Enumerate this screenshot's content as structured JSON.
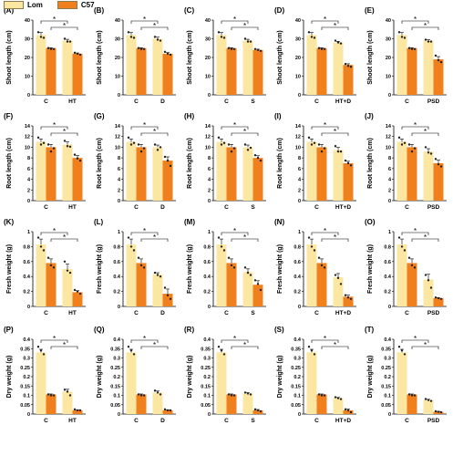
{
  "colors": {
    "lom": "#FBE7A1",
    "c57": "#F07F1E"
  },
  "legend": [
    {
      "label": "Lom",
      "color": "#FBE7A1"
    },
    {
      "label": "C57",
      "color": "#F07F1E"
    }
  ],
  "chart_data": [
    {
      "type": "bar",
      "panel": "(A)",
      "ylabel": "Shoot length (cm)",
      "ylim": [
        0,
        40
      ],
      "yticks": [
        0,
        10,
        20,
        30,
        40
      ],
      "categories": [
        "C",
        "HT"
      ],
      "series": [
        {
          "name": "Lom",
          "values": [
            32,
            29
          ]
        },
        {
          "name": "C57",
          "values": [
            25,
            22
          ]
        }
      ],
      "points": [
        [
          [
            33.5,
            31,
            30.5
          ],
          [
            25,
            24.5,
            24.5
          ]
        ],
        [
          [
            30,
            28.5,
            28.5
          ],
          [
            22.5,
            22,
            21.5
          ]
        ]
      ],
      "sig": [
        "*",
        "*"
      ]
    },
    {
      "type": "bar",
      "panel": "(B)",
      "ylabel": "Shoot length (cm)",
      "ylim": [
        0,
        40
      ],
      "yticks": [
        0,
        10,
        20,
        30,
        40
      ],
      "categories": [
        "C",
        "D"
      ],
      "series": [
        {
          "name": "Lom",
          "values": [
            32,
            30
          ]
        },
        {
          "name": "C57",
          "values": [
            25,
            22
          ]
        }
      ],
      "points": [
        [
          [
            33.5,
            31,
            30.5
          ],
          [
            25,
            24.5,
            24.5
          ]
        ],
        [
          [
            31,
            29.5,
            29
          ],
          [
            23,
            22,
            21.5
          ]
        ]
      ],
      "sig": [
        "*",
        "*"
      ]
    },
    {
      "type": "bar",
      "panel": "(C)",
      "ylabel": "Shoot length (cm)",
      "ylim": [
        0,
        40
      ],
      "yticks": [
        0,
        10,
        20,
        30,
        40
      ],
      "categories": [
        "C",
        "S"
      ],
      "series": [
        {
          "name": "Lom",
          "values": [
            32,
            29
          ]
        },
        {
          "name": "C57",
          "values": [
            25,
            24
          ]
        }
      ],
      "points": [
        [
          [
            33.5,
            31,
            30.5
          ],
          [
            25,
            24.5,
            24.5
          ]
        ],
        [
          [
            30,
            28.5,
            28.5
          ],
          [
            24.5,
            24,
            23.5
          ]
        ]
      ],
      "sig": [
        "*",
        "*"
      ]
    },
    {
      "type": "bar",
      "panel": "(D)",
      "ylabel": "Shoot length (cm)",
      "ylim": [
        0,
        40
      ],
      "yticks": [
        0,
        10,
        20,
        30,
        40
      ],
      "categories": [
        "C",
        "HT+D"
      ],
      "series": [
        {
          "name": "Lom",
          "values": [
            32,
            28
          ]
        },
        {
          "name": "C57",
          "values": [
            25,
            16
          ]
        }
      ],
      "points": [
        [
          [
            33.5,
            31,
            30.5
          ],
          [
            25,
            24.5,
            24.5
          ]
        ],
        [
          [
            29,
            28,
            27.5
          ],
          [
            16.5,
            15.5,
            15
          ]
        ]
      ],
      "sig": [
        "*",
        "*"
      ]
    },
    {
      "type": "bar",
      "panel": "(E)",
      "ylabel": "Shoot length (cm)",
      "ylim": [
        0,
        40
      ],
      "yticks": [
        0,
        10,
        20,
        30,
        40
      ],
      "categories": [
        "C",
        "PSD"
      ],
      "series": [
        {
          "name": "Lom",
          "values": [
            32,
            29
          ]
        },
        {
          "name": "C57",
          "values": [
            25,
            19
          ]
        }
      ],
      "points": [
        [
          [
            33.5,
            31,
            30.5
          ],
          [
            25,
            24.5,
            24.5
          ]
        ],
        [
          [
            29.5,
            28.5,
            28.5
          ],
          [
            21,
            18.5,
            17.5
          ]
        ]
      ],
      "sig": [
        "*",
        "*"
      ]
    },
    {
      "type": "bar",
      "panel": "(F)",
      "ylabel": "Root length (cm)",
      "ylim": [
        0,
        14
      ],
      "yticks": [
        0,
        2,
        4,
        6,
        8,
        10,
        12,
        14
      ],
      "categories": [
        "C",
        "HT"
      ],
      "series": [
        {
          "name": "Lom",
          "values": [
            11,
            10.5
          ]
        },
        {
          "name": "C57",
          "values": [
            10,
            8
          ]
        }
      ],
      "points": [
        [
          [
            11.8,
            10.5,
            10.8
          ],
          [
            10.5,
            9.2,
            9.8
          ]
        ],
        [
          [
            11.2,
            10.2,
            10.1
          ],
          [
            8.6,
            7.9,
            7.5
          ]
        ]
      ],
      "sig": [
        "*",
        "*"
      ]
    },
    {
      "type": "bar",
      "panel": "(G)",
      "ylabel": "Root length (cm)",
      "ylim": [
        0,
        14
      ],
      "yticks": [
        0,
        2,
        4,
        6,
        8,
        10,
        12,
        14
      ],
      "categories": [
        "C",
        "D"
      ],
      "series": [
        {
          "name": "Lom",
          "values": [
            11,
            10
          ]
        },
        {
          "name": "C57",
          "values": [
            10,
            7.5
          ]
        }
      ],
      "points": [
        [
          [
            11.8,
            10.5,
            10.8
          ],
          [
            10.5,
            9.2,
            9.8
          ]
        ],
        [
          [
            10.5,
            9.5,
            10
          ],
          [
            8.2,
            7.5,
            6.5
          ]
        ]
      ],
      "sig": [
        "*",
        "*"
      ]
    },
    {
      "type": "bar",
      "panel": "(H)",
      "ylabel": "Root length (cm)",
      "ylim": [
        0,
        14
      ],
      "yticks": [
        0,
        2,
        4,
        6,
        8,
        10,
        12,
        14
      ],
      "categories": [
        "C",
        "S"
      ],
      "series": [
        {
          "name": "Lom",
          "values": [
            11,
            10
          ]
        },
        {
          "name": "C57",
          "values": [
            10,
            8
          ]
        }
      ],
      "points": [
        [
          [
            11.8,
            10.5,
            10.8
          ],
          [
            10.5,
            9.2,
            9.8
          ]
        ],
        [
          [
            10.5,
            9.5,
            9.9
          ],
          [
            8.5,
            8,
            7.5
          ]
        ]
      ],
      "sig": [
        "*",
        "*"
      ]
    },
    {
      "type": "bar",
      "panel": "(I)",
      "ylabel": "Root length (cm)",
      "ylim": [
        0,
        14
      ],
      "yticks": [
        0,
        2,
        4,
        6,
        8,
        10,
        12,
        14
      ],
      "categories": [
        "C",
        "HT+D"
      ],
      "series": [
        {
          "name": "Lom",
          "values": [
            11,
            9.5
          ]
        },
        {
          "name": "C57",
          "values": [
            10,
            7
          ]
        }
      ],
      "points": [
        [
          [
            11.8,
            10.5,
            10.8
          ],
          [
            10.5,
            9.2,
            9.8
          ]
        ],
        [
          [
            10.2,
            9.2,
            9.2
          ],
          [
            7.5,
            7,
            6.6
          ]
        ]
      ],
      "sig": [
        "*",
        "*"
      ]
    },
    {
      "type": "bar",
      "panel": "(J)",
      "ylabel": "Root length (cm)",
      "ylim": [
        0,
        14
      ],
      "yticks": [
        0,
        2,
        4,
        6,
        8,
        10,
        12,
        14
      ],
      "categories": [
        "C",
        "PSD"
      ],
      "series": [
        {
          "name": "Lom",
          "values": [
            11,
            9.2
          ]
        },
        {
          "name": "C57",
          "values": [
            10,
            7
          ]
        }
      ],
      "points": [
        [
          [
            11.8,
            10.5,
            10.8
          ],
          [
            10.5,
            9.2,
            9.8
          ]
        ],
        [
          [
            10,
            9,
            8.8
          ],
          [
            7.8,
            6.8,
            6.4
          ]
        ]
      ],
      "sig": [
        "*",
        "*"
      ]
    },
    {
      "type": "bar",
      "panel": "(K)",
      "ylabel": "Fresh weight (g)",
      "ylim": [
        0,
        1
      ],
      "yticks": [
        0,
        0.2,
        0.4,
        0.6,
        0.8,
        1
      ],
      "categories": [
        "C",
        "HT"
      ],
      "series": [
        {
          "name": "Lom",
          "values": [
            0.83,
            0.5
          ]
        },
        {
          "name": "C57",
          "values": [
            0.58,
            0.19
          ]
        }
      ],
      "points": [
        [
          [
            0.92,
            0.8,
            0.75
          ],
          [
            0.65,
            0.55,
            0.52
          ]
        ],
        [
          [
            0.6,
            0.48,
            0.45
          ],
          [
            0.22,
            0.2,
            0.17
          ]
        ]
      ],
      "sig": [
        "*",
        "*"
      ]
    },
    {
      "type": "bar",
      "panel": "(L)",
      "ylabel": "Fresh weight (g)",
      "ylim": [
        0,
        1
      ],
      "yticks": [
        0,
        0.2,
        0.4,
        0.6,
        0.8,
        1
      ],
      "categories": [
        "C",
        "D"
      ],
      "series": [
        {
          "name": "Lom",
          "values": [
            0.83,
            0.43
          ]
        },
        {
          "name": "C57",
          "values": [
            0.58,
            0.17
          ]
        }
      ],
      "points": [
        [
          [
            0.92,
            0.8,
            0.75
          ],
          [
            0.65,
            0.55,
            0.52
          ]
        ],
        [
          [
            0.45,
            0.42,
            0.4
          ],
          [
            0.25,
            0.15,
            0.1
          ]
        ]
      ],
      "sig": [
        "*",
        "*"
      ]
    },
    {
      "type": "bar",
      "panel": "(M)",
      "ylabel": "Fresh weight (g)",
      "ylim": [
        0,
        1
      ],
      "yticks": [
        0,
        0.2,
        0.4,
        0.6,
        0.8,
        1
      ],
      "categories": [
        "C",
        "S"
      ],
      "series": [
        {
          "name": "Lom",
          "values": [
            0.83,
            0.46
          ]
        },
        {
          "name": "C57",
          "values": [
            0.58,
            0.29
          ]
        }
      ],
      "points": [
        [
          [
            0.92,
            0.8,
            0.75
          ],
          [
            0.65,
            0.55,
            0.52
          ]
        ],
        [
          [
            0.52,
            0.45,
            0.42
          ],
          [
            0.35,
            0.3,
            0.22
          ]
        ]
      ],
      "sig": [
        "*",
        "*"
      ]
    },
    {
      "type": "bar",
      "panel": "(N)",
      "ylabel": "Fresh weight (g)",
      "ylim": [
        0,
        1
      ],
      "yticks": [
        0,
        0.2,
        0.4,
        0.6,
        0.8,
        1
      ],
      "categories": [
        "C",
        "HT+D"
      ],
      "series": [
        {
          "name": "Lom",
          "values": [
            0.83,
            0.39
          ]
        },
        {
          "name": "C57",
          "values": [
            0.58,
            0.13
          ]
        }
      ],
      "points": [
        [
          [
            0.92,
            0.8,
            0.75
          ],
          [
            0.65,
            0.55,
            0.52
          ]
        ],
        [
          [
            0.42,
            0.38,
            0.3
          ],
          [
            0.15,
            0.12,
            0.1
          ]
        ]
      ],
      "sig": [
        "*",
        "*"
      ]
    },
    {
      "type": "bar",
      "panel": "(O)",
      "ylabel": "Fresh weight (g)",
      "ylim": [
        0,
        1
      ],
      "yticks": [
        0,
        0.2,
        0.4,
        0.6,
        0.8,
        1
      ],
      "categories": [
        "C",
        "PSD"
      ],
      "series": [
        {
          "name": "Lom",
          "values": [
            0.83,
            0.36
          ]
        },
        {
          "name": "C57",
          "values": [
            0.58,
            0.11
          ]
        }
      ],
      "points": [
        [
          [
            0.92,
            0.8,
            0.75
          ],
          [
            0.65,
            0.55,
            0.52
          ]
        ],
        [
          [
            0.42,
            0.35,
            0.25
          ],
          [
            0.12,
            0.11,
            0.1
          ]
        ]
      ],
      "sig": [
        "*",
        "*"
      ]
    },
    {
      "type": "bar",
      "panel": "(P)",
      "ylabel": "Dry weight (g)",
      "ylim": [
        0,
        0.4
      ],
      "yticks": [
        0,
        0.05,
        0.1,
        0.15,
        0.2,
        0.25,
        0.3,
        0.35,
        0.4
      ],
      "categories": [
        "C",
        "HT"
      ],
      "series": [
        {
          "name": "Lom",
          "values": [
            0.33,
            0.12
          ]
        },
        {
          "name": "C57",
          "values": [
            0.105,
            0.02
          ]
        }
      ],
      "points": [
        [
          [
            0.36,
            0.34,
            0.32
          ],
          [
            0.105,
            0.1,
            0.1
          ]
        ],
        [
          [
            0.13,
            0.12,
            0.1
          ],
          [
            0.025,
            0.02,
            0.02
          ]
        ]
      ],
      "sig": [
        "*",
        "*"
      ]
    },
    {
      "type": "bar",
      "panel": "(Q)",
      "ylabel": "Dry weight (g)",
      "ylim": [
        0,
        0.4
      ],
      "yticks": [
        0,
        0.05,
        0.1,
        0.15,
        0.2,
        0.25,
        0.3,
        0.35,
        0.4
      ],
      "categories": [
        "C",
        "D"
      ],
      "series": [
        {
          "name": "Lom",
          "values": [
            0.33,
            0.115
          ]
        },
        {
          "name": "C57",
          "values": [
            0.105,
            0.02
          ]
        }
      ],
      "points": [
        [
          [
            0.36,
            0.34,
            0.32
          ],
          [
            0.105,
            0.1,
            0.1
          ]
        ],
        [
          [
            0.125,
            0.115,
            0.105
          ],
          [
            0.025,
            0.02,
            0.02
          ]
        ]
      ],
      "sig": [
        "*",
        "*"
      ]
    },
    {
      "type": "bar",
      "panel": "(R)",
      "ylabel": "Dry weight (g)",
      "ylim": [
        0,
        0.4
      ],
      "yticks": [
        0,
        0.05,
        0.1,
        0.15,
        0.2,
        0.25,
        0.3,
        0.35,
        0.4
      ],
      "categories": [
        "C",
        "S"
      ],
      "series": [
        {
          "name": "Lom",
          "values": [
            0.33,
            0.11
          ]
        },
        {
          "name": "C57",
          "values": [
            0.105,
            0.02
          ]
        }
      ],
      "points": [
        [
          [
            0.36,
            0.34,
            0.32
          ],
          [
            0.105,
            0.1,
            0.1
          ]
        ],
        [
          [
            0.115,
            0.11,
            0.105
          ],
          [
            0.025,
            0.02,
            0.015
          ]
        ]
      ],
      "sig": [
        "*",
        "*"
      ]
    },
    {
      "type": "bar",
      "panel": "(S)",
      "ylabel": "Dry weight (g)",
      "ylim": [
        0,
        0.4
      ],
      "yticks": [
        0,
        0.05,
        0.1,
        0.15,
        0.2,
        0.25,
        0.3,
        0.35,
        0.4
      ],
      "categories": [
        "C",
        "HT+D"
      ],
      "series": [
        {
          "name": "Lom",
          "values": [
            0.33,
            0.085
          ]
        },
        {
          "name": "C57",
          "values": [
            0.105,
            0.02
          ]
        }
      ],
      "points": [
        [
          [
            0.36,
            0.34,
            0.32
          ],
          [
            0.105,
            0.1,
            0.1
          ]
        ],
        [
          [
            0.09,
            0.085,
            0.08
          ],
          [
            0.025,
            0.02,
            0.01
          ]
        ]
      ],
      "sig": [
        "*",
        "*"
      ]
    },
    {
      "type": "bar",
      "panel": "(T)",
      "ylabel": "Dry weight (g)",
      "ylim": [
        0,
        0.4
      ],
      "yticks": [
        0,
        0.05,
        0.1,
        0.15,
        0.2,
        0.25,
        0.3,
        0.35,
        0.4
      ],
      "categories": [
        "C",
        "PSD"
      ],
      "series": [
        {
          "name": "Lom",
          "values": [
            0.33,
            0.075
          ]
        },
        {
          "name": "C57",
          "values": [
            0.105,
            0.012
          ]
        }
      ],
      "points": [
        [
          [
            0.36,
            0.34,
            0.32
          ],
          [
            0.105,
            0.1,
            0.1
          ]
        ],
        [
          [
            0.08,
            0.075,
            0.07
          ],
          [
            0.015,
            0.012,
            0.01
          ]
        ]
      ],
      "sig": [
        "*",
        "*"
      ]
    }
  ]
}
